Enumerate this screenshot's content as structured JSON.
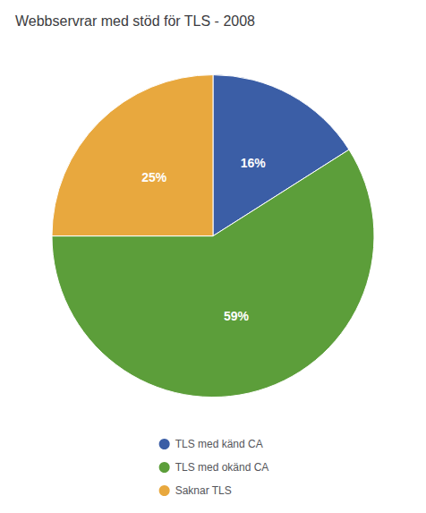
{
  "chart_data": {
    "type": "pie",
    "title": "Webbservrar med stöd för TLS - 2008",
    "categories": [
      "TLS med känd CA",
      "TLS med okänd CA",
      "Saknar TLS"
    ],
    "values": [
      16,
      59,
      25
    ],
    "value_labels": [
      "16%",
      "59%",
      "25%"
    ],
    "colors": [
      "#3B5EA6",
      "#5C9E3A",
      "#E8A83E"
    ],
    "data_labels": true,
    "legend": "bottom"
  }
}
